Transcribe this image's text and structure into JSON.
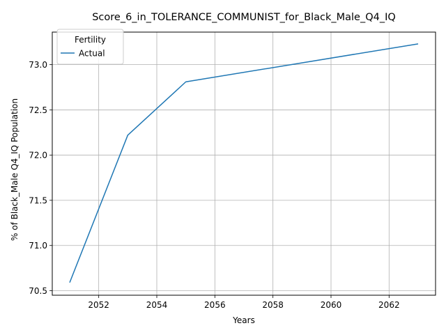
{
  "chart_data": {
    "type": "line",
    "title": "Score_6_in_TOLERANCE_COMMUNIST_for_Black_Male_Q4_IQ",
    "xlabel": "Years",
    "ylabel": "% of Black_Male Q4_IQ Population",
    "xlim": [
      2050.4,
      2063.6
    ],
    "ylim": [
      70.45,
      73.36
    ],
    "xticks": [
      2052,
      2054,
      2056,
      2058,
      2060,
      2062
    ],
    "yticks": [
      70.5,
      71.0,
      71.5,
      72.0,
      72.5,
      73.0
    ],
    "xtick_labels": [
      "2052",
      "2054",
      "2056",
      "2058",
      "2060",
      "2062"
    ],
    "ytick_labels": [
      "70.5",
      "71.0",
      "71.5",
      "72.0",
      "72.5",
      "73.0"
    ],
    "grid": true,
    "legend": {
      "title": "Fertility",
      "position": "top-left"
    },
    "series": [
      {
        "name": "Actual",
        "color": "#1f77b4",
        "x": [
          2051,
          2053,
          2055,
          2063
        ],
        "y": [
          70.59,
          72.22,
          72.81,
          73.23
        ]
      }
    ]
  }
}
